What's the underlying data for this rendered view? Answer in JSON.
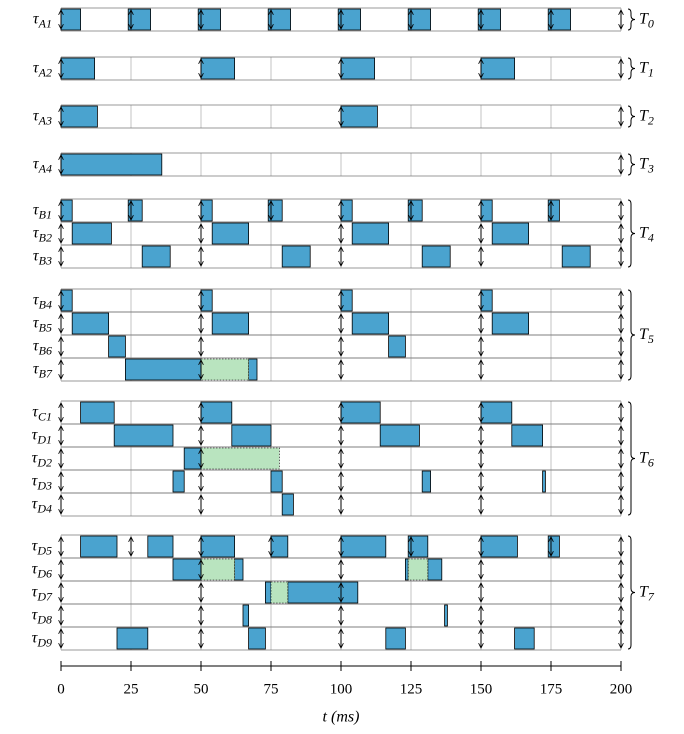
{
  "chart_data": {
    "type": "gantt",
    "xlabel": "t (ms)",
    "xlim": [
      0,
      200
    ],
    "xticks": [
      0,
      25,
      50,
      75,
      100,
      125,
      150,
      175,
      200
    ],
    "grid": true,
    "color": "#4aa3cf",
    "overrun_color": "#b9e4bf",
    "groups": [
      {
        "symbol": "T",
        "sub": "0",
        "rows": [
          {
            "symbol": "τ",
            "sub": "A1",
            "releases": [
              0,
              25,
              50,
              75,
              100,
              125,
              150,
              175,
              200
            ],
            "segments": [
              [
                0,
                7
              ],
              [
                24,
                32
              ],
              [
                49,
                57
              ],
              [
                74,
                82
              ],
              [
                99,
                107
              ],
              [
                124,
                132
              ],
              [
                149,
                157
              ],
              [
                174,
                182
              ]
            ],
            "overrun": []
          }
        ]
      },
      {
        "symbol": "T",
        "sub": "1",
        "rows": [
          {
            "symbol": "τ",
            "sub": "A2",
            "releases": [
              0,
              50,
              100,
              150,
              200
            ],
            "segments": [
              [
                0,
                12
              ],
              [
                50,
                62
              ],
              [
                100,
                112
              ],
              [
                150,
                162
              ]
            ],
            "overrun": []
          }
        ]
      },
      {
        "symbol": "T",
        "sub": "2",
        "rows": [
          {
            "symbol": "τ",
            "sub": "A3",
            "releases": [
              0,
              100,
              200
            ],
            "segments": [
              [
                0,
                13
              ],
              [
                100,
                113
              ]
            ],
            "overrun": []
          }
        ]
      },
      {
        "symbol": "T",
        "sub": "3",
        "rows": [
          {
            "symbol": "τ",
            "sub": "A4",
            "releases": [
              0,
              200
            ],
            "segments": [
              [
                0,
                36
              ]
            ],
            "overrun": []
          }
        ]
      },
      {
        "symbol": "T",
        "sub": "4",
        "rows": [
          {
            "symbol": "τ",
            "sub": "B1",
            "releases": [
              0,
              25,
              50,
              75,
              100,
              125,
              150,
              175,
              200
            ],
            "segments": [
              [
                0,
                4
              ],
              [
                24,
                29
              ],
              [
                50,
                54
              ],
              [
                74,
                79
              ],
              [
                100,
                104
              ],
              [
                124,
                129
              ],
              [
                150,
                154
              ],
              [
                174,
                178
              ]
            ],
            "overrun": []
          },
          {
            "symbol": "τ",
            "sub": "B2",
            "releases": [
              0,
              50,
              100,
              150,
              200
            ],
            "segments": [
              [
                4,
                18
              ],
              [
                54,
                67
              ],
              [
                104,
                117
              ],
              [
                154,
                167
              ]
            ],
            "overrun": []
          },
          {
            "symbol": "τ",
            "sub": "B3",
            "releases": [
              0,
              50,
              100,
              150,
              200
            ],
            "segments": [
              [
                29,
                39
              ],
              [
                79,
                89
              ],
              [
                129,
                139
              ],
              [
                179,
                189
              ]
            ],
            "overrun": []
          }
        ]
      },
      {
        "symbol": "T",
        "sub": "5",
        "rows": [
          {
            "symbol": "τ",
            "sub": "B4",
            "releases": [
              0,
              50,
              100,
              150,
              200
            ],
            "segments": [
              [
                0,
                4
              ],
              [
                50,
                54
              ],
              [
                100,
                104
              ],
              [
                150,
                154
              ]
            ],
            "overrun": []
          },
          {
            "symbol": "τ",
            "sub": "B5",
            "releases": [
              0,
              50,
              100,
              150,
              200
            ],
            "segments": [
              [
                4,
                17
              ],
              [
                54,
                67
              ],
              [
                104,
                117
              ],
              [
                154,
                167
              ]
            ],
            "overrun": []
          },
          {
            "symbol": "τ",
            "sub": "B6",
            "releases": [
              0,
              50,
              100,
              150,
              200
            ],
            "segments": [
              [
                17,
                23
              ],
              [
                117,
                123
              ]
            ],
            "overrun": []
          },
          {
            "symbol": "τ",
            "sub": "B7",
            "releases": [
              0,
              50,
              100,
              150,
              200
            ],
            "segments": [
              [
                23,
                50
              ],
              [
                67,
                70
              ]
            ],
            "overrun": [
              [
                50,
                67
              ]
            ]
          }
        ]
      },
      {
        "symbol": "T",
        "sub": "6",
        "rows": [
          {
            "symbol": "τ",
            "sub": "C1",
            "releases": [
              0,
              50,
              100,
              150,
              200
            ],
            "segments": [
              [
                7,
                19
              ],
              [
                50,
                61
              ],
              [
                100,
                114
              ],
              [
                150,
                161
              ]
            ],
            "overrun": []
          },
          {
            "symbol": "τ",
            "sub": "D1",
            "releases": [
              0,
              50,
              100,
              150,
              200
            ],
            "segments": [
              [
                19,
                40
              ],
              [
                61,
                75
              ],
              [
                114,
                128
              ],
              [
                161,
                172
              ]
            ],
            "overrun": []
          },
          {
            "symbol": "τ",
            "sub": "D2",
            "releases": [
              0,
              50,
              100,
              150,
              200
            ],
            "segments": [
              [
                44,
                50
              ]
            ],
            "overrun": [
              [
                50,
                78
              ]
            ]
          },
          {
            "symbol": "τ",
            "sub": "D3",
            "releases": [
              0,
              50,
              100,
              150,
              200
            ],
            "segments": [
              [
                40,
                44
              ],
              [
                75,
                79
              ],
              [
                129,
                132
              ],
              [
                172,
                173
              ]
            ],
            "overrun": []
          },
          {
            "symbol": "τ",
            "sub": "D4",
            "releases": [
              0,
              50,
              100,
              150,
              200
            ],
            "segments": [
              [
                79,
                83
              ]
            ],
            "overrun": []
          }
        ]
      },
      {
        "symbol": "T",
        "sub": "7",
        "rows": [
          {
            "symbol": "τ",
            "sub": "D5",
            "releases": [
              0,
              25,
              50,
              75,
              100,
              125,
              150,
              175,
              200
            ],
            "segments": [
              [
                7,
                20
              ],
              [
                31,
                40
              ],
              [
                50,
                62
              ],
              [
                75,
                81
              ],
              [
                100,
                116
              ],
              [
                124,
                131
              ],
              [
                150,
                163
              ],
              [
                174,
                178
              ]
            ],
            "overrun": []
          },
          {
            "symbol": "τ",
            "sub": "D6",
            "releases": [
              0,
              50,
              100,
              150,
              200
            ],
            "segments": [
              [
                40,
                50
              ],
              [
                62,
                65
              ],
              [
                123,
                124
              ],
              [
                131,
                136
              ]
            ],
            "overrun": [
              [
                50,
                62
              ],
              [
                124,
                131
              ]
            ]
          },
          {
            "symbol": "τ",
            "sub": "D7",
            "releases": [
              0,
              50,
              100,
              150,
              200
            ],
            "segments": [
              [
                73,
                75
              ],
              [
                81,
                106
              ]
            ],
            "overrun": [
              [
                75,
                81
              ]
            ]
          },
          {
            "symbol": "τ",
            "sub": "D8",
            "releases": [
              0,
              50,
              100,
              150,
              200
            ],
            "segments": [
              [
                65,
                67
              ],
              [
                137,
                138
              ]
            ],
            "overrun": []
          },
          {
            "symbol": "τ",
            "sub": "D9",
            "releases": [
              0,
              50,
              100,
              150,
              200
            ],
            "segments": [
              [
                20,
                31
              ],
              [
                67,
                73
              ],
              [
                116,
                123
              ],
              [
                162,
                169
              ]
            ],
            "overrun": []
          }
        ]
      }
    ]
  }
}
